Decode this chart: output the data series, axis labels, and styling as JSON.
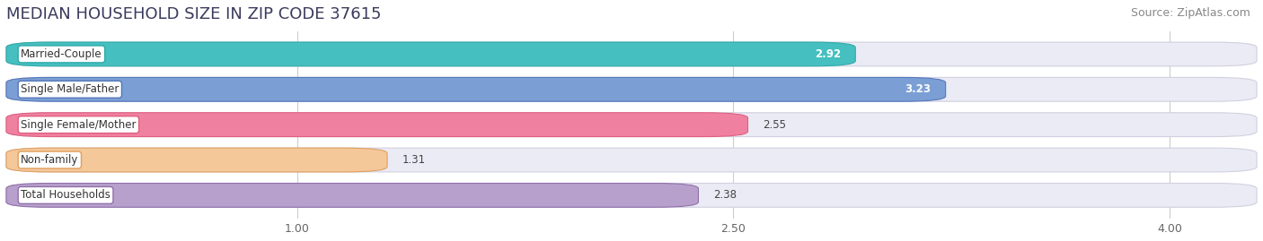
{
  "title": "MEDIAN HOUSEHOLD SIZE IN ZIP CODE 37615",
  "source": "Source: ZipAtlas.com",
  "categories": [
    "Married-Couple",
    "Single Male/Father",
    "Single Female/Mother",
    "Non-family",
    "Total Households"
  ],
  "values": [
    2.92,
    3.23,
    2.55,
    1.31,
    2.38
  ],
  "bar_colors": [
    "#45BFBF",
    "#7B9FD4",
    "#F080A0",
    "#F5C89A",
    "#B8A0CC"
  ],
  "bar_edge_colors": [
    "#30AAAA",
    "#5577BB",
    "#E06080",
    "#E0A060",
    "#9070AA"
  ],
  "value_inside": [
    true,
    true,
    false,
    false,
    false
  ],
  "xlim": [
    0.0,
    4.3
  ],
  "xmin": 0.0,
  "xmax": 4.3,
  "xticks": [
    1.0,
    2.5,
    4.0
  ],
  "xtick_labels": [
    "1.00",
    "2.50",
    "4.00"
  ],
  "background_color": "#ffffff",
  "bar_bg_color": "#ebebf5",
  "title_color": "#3a3a5c",
  "title_fontsize": 13,
  "source_fontsize": 9,
  "label_fontsize": 8.5,
  "value_fontsize": 8.5
}
